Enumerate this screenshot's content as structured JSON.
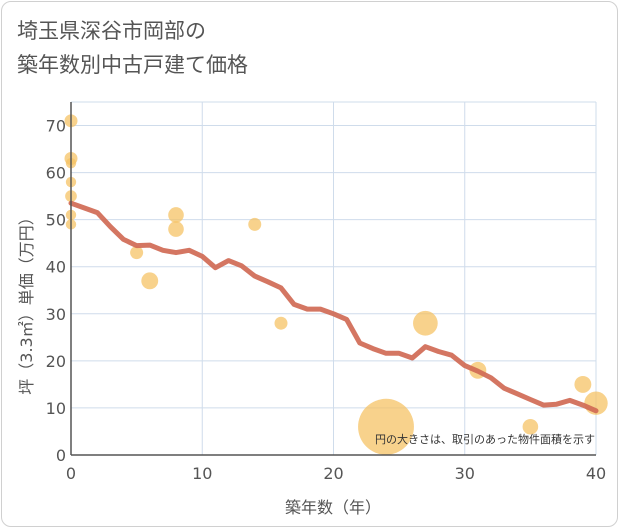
{
  "title_line1": "埼玉県深谷市岡部の",
  "title_line2": "築年数別中古戸建て価格",
  "chart_data": {
    "type": "scatter",
    "title": "埼玉県深谷市岡部の築年数別中古戸建て価格",
    "xlabel": "築年数（年）",
    "ylabel": "坪（3.3㎡）単価（万円）",
    "xlim": [
      0,
      40
    ],
    "ylim": [
      0,
      75
    ],
    "x_ticks": [
      0,
      10,
      20,
      30,
      40
    ],
    "y_ticks": [
      0,
      10,
      20,
      30,
      40,
      50,
      60,
      70
    ],
    "grid": true,
    "note": "円の大きさは、取引のあった物件面積を示す",
    "colors": {
      "points": "#f5c060",
      "trend": "#d06a55",
      "grid": "#cfdceb",
      "axis": "#555555"
    },
    "series": [
      {
        "kind": "scatter",
        "points": [
          {
            "x": 0,
            "y": 71,
            "size": 1.0
          },
          {
            "x": 0,
            "y": 63,
            "size": 1.0
          },
          {
            "x": 0,
            "y": 62,
            "size": 0.8
          },
          {
            "x": 0,
            "y": 58,
            "size": 0.8
          },
          {
            "x": 0,
            "y": 55,
            "size": 0.9
          },
          {
            "x": 0,
            "y": 51,
            "size": 0.8
          },
          {
            "x": 0,
            "y": 49,
            "size": 0.8
          },
          {
            "x": 5,
            "y": 43,
            "size": 1.0
          },
          {
            "x": 6,
            "y": 37,
            "size": 1.3
          },
          {
            "x": 8,
            "y": 51,
            "size": 1.2
          },
          {
            "x": 8,
            "y": 48,
            "size": 1.2
          },
          {
            "x": 14,
            "y": 49,
            "size": 1.0
          },
          {
            "x": 16,
            "y": 28,
            "size": 1.0
          },
          {
            "x": 24,
            "y": 6,
            "size": 4.3
          },
          {
            "x": 27,
            "y": 28,
            "size": 1.9
          },
          {
            "x": 31,
            "y": 18,
            "size": 1.3
          },
          {
            "x": 35,
            "y": 6,
            "size": 1.2
          },
          {
            "x": 39,
            "y": 15,
            "size": 1.3
          },
          {
            "x": 40,
            "y": 11,
            "size": 1.8
          }
        ]
      },
      {
        "kind": "line",
        "x": [
          0,
          1,
          2,
          3,
          4,
          5,
          6,
          7,
          8,
          9,
          10,
          11,
          12,
          13,
          14,
          15,
          16,
          17,
          18,
          19,
          20,
          21,
          22,
          23,
          24,
          25,
          26,
          27,
          28,
          29,
          30,
          31,
          32,
          33,
          34,
          35,
          36,
          37,
          38,
          39,
          40
        ],
        "y": [
          53.5,
          52.5,
          51.5,
          48.5,
          45.8,
          44.5,
          44.6,
          43.5,
          43.0,
          43.5,
          42.2,
          39.8,
          41.3,
          40.2,
          38.0,
          36.8,
          35.5,
          32.0,
          31.0,
          31.0,
          30.0,
          28.8,
          23.8,
          22.6,
          21.6,
          21.6,
          20.6,
          23.0,
          22.0,
          21.2,
          19.0,
          17.8,
          16.4,
          14.2,
          13.0,
          11.8,
          10.6,
          10.8,
          11.6,
          10.6,
          9.4
        ]
      }
    ]
  }
}
